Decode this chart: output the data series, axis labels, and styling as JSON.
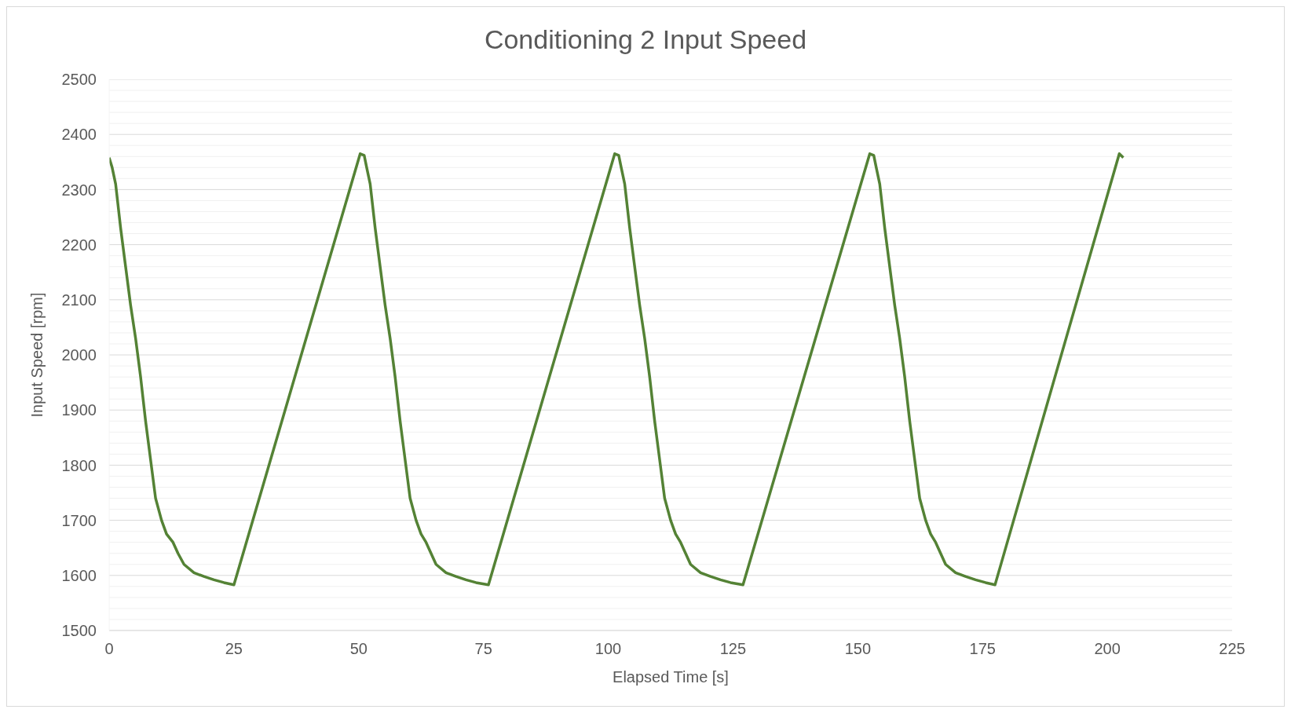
{
  "chart_data": {
    "type": "line",
    "title": "Conditioning 2 Input Speed",
    "xlabel": "Elapsed Time [s]",
    "ylabel": "Input Speed [rpm]",
    "xlim": [
      0,
      225
    ],
    "xticks": [
      0,
      25,
      50,
      75,
      100,
      125,
      150,
      175,
      200,
      225
    ],
    "ylim": [
      1500,
      2500
    ],
    "yticks": [
      1500,
      {
        "value": 1520,
        "label": null
      },
      {
        "value": 1540,
        "label": null
      },
      {
        "value": 1560,
        "label": null
      },
      {
        "value": 1580,
        "label": null
      },
      1600,
      {
        "value": 1620,
        "label": null
      },
      {
        "value": 1640,
        "label": null
      },
      {
        "value": 1660,
        "label": null
      },
      {
        "value": 1680,
        "label": null
      },
      1700,
      {
        "value": 1720,
        "label": null
      },
      {
        "value": 1740,
        "label": null
      },
      {
        "value": 1760,
        "label": null
      },
      {
        "value": 1780,
        "label": null
      },
      1800,
      {
        "value": 1820,
        "label": null
      },
      {
        "value": 1840,
        "label": null
      },
      {
        "value": 1860,
        "label": null
      },
      {
        "value": 1880,
        "label": null
      },
      1900,
      {
        "value": 1920,
        "label": null
      },
      {
        "value": 1940,
        "label": null
      },
      {
        "value": 1960,
        "label": null
      },
      {
        "value": 1980,
        "label": null
      },
      2000,
      {
        "value": 2020,
        "label": null
      },
      {
        "value": 2040,
        "label": null
      },
      {
        "value": 2060,
        "label": null
      },
      {
        "value": 2080,
        "label": null
      },
      2100,
      {
        "value": 2120,
        "label": null
      },
      {
        "value": 2140,
        "label": null
      },
      {
        "value": 2160,
        "label": null
      },
      {
        "value": 2180,
        "label": null
      },
      2200,
      {
        "value": 2220,
        "label": null
      },
      {
        "value": 2240,
        "label": null
      },
      {
        "value": 2260,
        "label": null
      },
      {
        "value": 2280,
        "label": null
      },
      2300,
      {
        "value": 2320,
        "label": null
      },
      {
        "value": 2340,
        "label": null
      },
      {
        "value": 2360,
        "label": null
      },
      {
        "value": 2380,
        "label": null
      },
      2400,
      {
        "value": 2420,
        "label": null
      },
      {
        "value": 2440,
        "label": null
      },
      {
        "value": 2460,
        "label": null
      },
      {
        "value": 2480,
        "label": null
      },
      2500
    ],
    "grid": "y",
    "marker": "none",
    "line_style": "solid",
    "series": [
      {
        "color": "#548235",
        "x": [
          0,
          0.6,
          1.3,
          2.3,
          3.3,
          4.3,
          5.3,
          6.3,
          7.3,
          8.3,
          9.3,
          10.5,
          11.5,
          12.8,
          13.8,
          15,
          17,
          19,
          21,
          23,
          25,
          50.3,
          51.1,
          51.6,
          52.3,
          53.3,
          54.3,
          55.3,
          56.3,
          57.3,
          58.3,
          59.3,
          60.3,
          61.5,
          62.5,
          63.5,
          64.5,
          65.5,
          67.5,
          69.5,
          71.5,
          73.5,
          76,
          101.3,
          102.1,
          102.6,
          103.3,
          104.3,
          105.3,
          106.3,
          107.3,
          108.3,
          109.3,
          110.3,
          111.3,
          112.5,
          113.5,
          114.5,
          115.5,
          116.5,
          118.5,
          120.5,
          122.5,
          124.5,
          127,
          152.4,
          153.2,
          153.7,
          154.4,
          155.4,
          156.4,
          157.4,
          158.4,
          159.4,
          160.4,
          161.4,
          162.4,
          163.6,
          164.6,
          165.6,
          166.6,
          167.6,
          169.6,
          171.6,
          173.6,
          175.6,
          177.5,
          202.4,
          203.2
        ],
        "values": [
          2358,
          2340,
          2310,
          2230,
          2160,
          2090,
          2030,
          1960,
          1880,
          1810,
          1740,
          1700,
          1675,
          1660,
          1640,
          1620,
          1605,
          1598,
          1592,
          1587,
          1583,
          2365,
          2362,
          2340,
          2310,
          2230,
          2160,
          2090,
          2030,
          1960,
          1880,
          1810,
          1740,
          1700,
          1675,
          1660,
          1640,
          1620,
          1605,
          1598,
          1592,
          1587,
          1583,
          2365,
          2362,
          2340,
          2310,
          2230,
          2160,
          2090,
          2030,
          1960,
          1880,
          1810,
          1740,
          1700,
          1675,
          1660,
          1640,
          1620,
          1605,
          1598,
          1592,
          1587,
          1583,
          2365,
          2362,
          2340,
          2310,
          2230,
          2160,
          2090,
          2030,
          1960,
          1880,
          1810,
          1740,
          1700,
          1675,
          1660,
          1640,
          1620,
          1605,
          1598,
          1592,
          1587,
          1583,
          2365,
          2358
        ]
      }
    ]
  }
}
